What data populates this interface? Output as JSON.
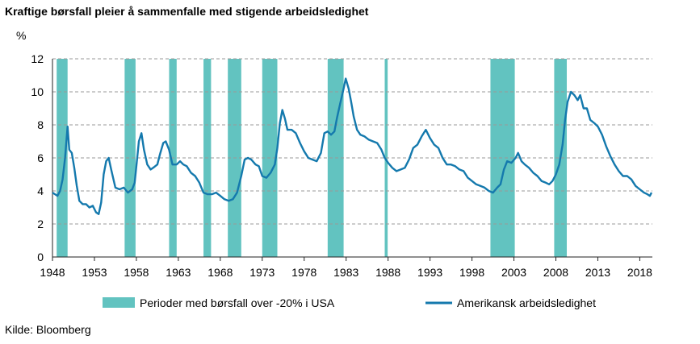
{
  "title": "Kraftige børsfall pleier å sammenfalle med stigende arbeidsledighet",
  "source": "Kilde: Bloomberg",
  "colors": {
    "shade": "#62c3c0",
    "line": "#1479ad",
    "grid": "#999999",
    "axis": "#222222"
  },
  "chart_data": {
    "type": "line",
    "title": "Kraftige børsfall pleier å sammenfalle med stigende arbeidsledighet",
    "xlabel": "",
    "ylabel": "%",
    "xlim": [
      1948,
      2019.5
    ],
    "ylim": [
      0,
      12
    ],
    "x_ticks": [
      "1948",
      "1953",
      "1958",
      "1963",
      "1968",
      "1973",
      "1978",
      "1983",
      "1988",
      "1993",
      "1998",
      "2003",
      "2008",
      "2013",
      "2018"
    ],
    "y_ticks": [
      "0",
      "2",
      "4",
      "6",
      "8",
      "10",
      "12"
    ],
    "grid": "horizontal dashed",
    "legend": [
      {
        "label": "Perioder med børsfall over -20% i USA",
        "kind": "band"
      },
      {
        "label": "Amerikansk arbeidsledighet",
        "kind": "line"
      }
    ],
    "legend_position": "bottom",
    "shaded_periods": [
      [
        1948.5,
        1949.8
      ],
      [
        1956.6,
        1957.9
      ],
      [
        1961.9,
        1962.8
      ],
      [
        1966.0,
        1966.9
      ],
      [
        1968.9,
        1970.5
      ],
      [
        1973.0,
        1974.8
      ],
      [
        1980.8,
        1982.7
      ],
      [
        1987.6,
        1987.95
      ],
      [
        2000.2,
        2003.1
      ],
      [
        2007.8,
        2009.3
      ]
    ],
    "series": [
      {
        "name": "Amerikansk arbeidsledighet",
        "points": [
          [
            1948.0,
            3.9
          ],
          [
            1948.3,
            3.8
          ],
          [
            1948.6,
            3.7
          ],
          [
            1948.9,
            4.0
          ],
          [
            1949.2,
            4.7
          ],
          [
            1949.5,
            6.0
          ],
          [
            1949.8,
            7.9
          ],
          [
            1950.0,
            6.5
          ],
          [
            1950.3,
            6.3
          ],
          [
            1950.6,
            5.4
          ],
          [
            1950.9,
            4.3
          ],
          [
            1951.2,
            3.4
          ],
          [
            1951.6,
            3.2
          ],
          [
            1952.0,
            3.2
          ],
          [
            1952.4,
            3.0
          ],
          [
            1952.8,
            3.1
          ],
          [
            1953.2,
            2.7
          ],
          [
            1953.5,
            2.6
          ],
          [
            1953.8,
            3.3
          ],
          [
            1954.1,
            5.0
          ],
          [
            1954.4,
            5.8
          ],
          [
            1954.7,
            6.0
          ],
          [
            1955.0,
            5.3
          ],
          [
            1955.5,
            4.2
          ],
          [
            1956.0,
            4.1
          ],
          [
            1956.5,
            4.2
          ],
          [
            1957.0,
            3.9
          ],
          [
            1957.5,
            4.1
          ],
          [
            1957.8,
            4.5
          ],
          [
            1958.0,
            5.5
          ],
          [
            1958.3,
            7.0
          ],
          [
            1958.6,
            7.5
          ],
          [
            1958.9,
            6.5
          ],
          [
            1959.3,
            5.6
          ],
          [
            1959.7,
            5.3
          ],
          [
            1960.0,
            5.4
          ],
          [
            1960.5,
            5.6
          ],
          [
            1960.8,
            6.2
          ],
          [
            1961.2,
            6.9
          ],
          [
            1961.5,
            7.0
          ],
          [
            1961.9,
            6.5
          ],
          [
            1962.3,
            5.6
          ],
          [
            1962.8,
            5.6
          ],
          [
            1963.2,
            5.8
          ],
          [
            1963.6,
            5.6
          ],
          [
            1964.0,
            5.5
          ],
          [
            1964.5,
            5.1
          ],
          [
            1965.0,
            4.9
          ],
          [
            1965.5,
            4.5
          ],
          [
            1966.0,
            3.9
          ],
          [
            1966.5,
            3.8
          ],
          [
            1967.0,
            3.8
          ],
          [
            1967.5,
            3.9
          ],
          [
            1968.0,
            3.7
          ],
          [
            1968.5,
            3.5
          ],
          [
            1969.0,
            3.4
          ],
          [
            1969.5,
            3.5
          ],
          [
            1970.0,
            3.9
          ],
          [
            1970.5,
            4.9
          ],
          [
            1970.9,
            5.9
          ],
          [
            1971.3,
            6.0
          ],
          [
            1971.7,
            5.9
          ],
          [
            1972.2,
            5.6
          ],
          [
            1972.6,
            5.5
          ],
          [
            1973.0,
            4.9
          ],
          [
            1973.5,
            4.8
          ],
          [
            1974.0,
            5.1
          ],
          [
            1974.5,
            5.6
          ],
          [
            1974.8,
            6.6
          ],
          [
            1975.1,
            8.1
          ],
          [
            1975.4,
            8.9
          ],
          [
            1975.7,
            8.4
          ],
          [
            1976.0,
            7.7
          ],
          [
            1976.5,
            7.7
          ],
          [
            1977.0,
            7.5
          ],
          [
            1977.5,
            6.9
          ],
          [
            1978.0,
            6.4
          ],
          [
            1978.5,
            6.0
          ],
          [
            1979.0,
            5.9
          ],
          [
            1979.5,
            5.8
          ],
          [
            1980.0,
            6.3
          ],
          [
            1980.4,
            7.5
          ],
          [
            1980.8,
            7.6
          ],
          [
            1981.2,
            7.4
          ],
          [
            1981.6,
            7.6
          ],
          [
            1981.9,
            8.4
          ],
          [
            1982.3,
            9.3
          ],
          [
            1982.7,
            10.2
          ],
          [
            1982.95,
            10.8
          ],
          [
            1983.3,
            10.2
          ],
          [
            1983.6,
            9.4
          ],
          [
            1983.9,
            8.5
          ],
          [
            1984.3,
            7.7
          ],
          [
            1984.7,
            7.4
          ],
          [
            1985.2,
            7.3
          ],
          [
            1985.7,
            7.1
          ],
          [
            1986.2,
            7.0
          ],
          [
            1986.7,
            6.9
          ],
          [
            1987.2,
            6.5
          ],
          [
            1987.6,
            6.0
          ],
          [
            1988.0,
            5.7
          ],
          [
            1988.5,
            5.4
          ],
          [
            1989.0,
            5.2
          ],
          [
            1989.5,
            5.3
          ],
          [
            1990.0,
            5.4
          ],
          [
            1990.5,
            5.9
          ],
          [
            1991.0,
            6.6
          ],
          [
            1991.5,
            6.8
          ],
          [
            1992.0,
            7.3
          ],
          [
            1992.5,
            7.7
          ],
          [
            1993.0,
            7.2
          ],
          [
            1993.5,
            6.8
          ],
          [
            1994.0,
            6.6
          ],
          [
            1994.5,
            6.0
          ],
          [
            1995.0,
            5.6
          ],
          [
            1995.5,
            5.6
          ],
          [
            1996.0,
            5.5
          ],
          [
            1996.5,
            5.3
          ],
          [
            1997.0,
            5.2
          ],
          [
            1997.5,
            4.8
          ],
          [
            1998.0,
            4.6
          ],
          [
            1998.5,
            4.4
          ],
          [
            1999.0,
            4.3
          ],
          [
            1999.5,
            4.2
          ],
          [
            2000.0,
            4.0
          ],
          [
            2000.5,
            3.9
          ],
          [
            2001.0,
            4.2
          ],
          [
            2001.4,
            4.4
          ],
          [
            2001.8,
            5.3
          ],
          [
            2002.2,
            5.8
          ],
          [
            2002.7,
            5.7
          ],
          [
            2003.2,
            6.0
          ],
          [
            2003.5,
            6.3
          ],
          [
            2003.9,
            5.8
          ],
          [
            2004.3,
            5.6
          ],
          [
            2004.8,
            5.4
          ],
          [
            2005.3,
            5.1
          ],
          [
            2005.8,
            4.9
          ],
          [
            2006.3,
            4.6
          ],
          [
            2006.8,
            4.5
          ],
          [
            2007.2,
            4.4
          ],
          [
            2007.6,
            4.6
          ],
          [
            2008.0,
            5.0
          ],
          [
            2008.4,
            5.6
          ],
          [
            2008.8,
            6.8
          ],
          [
            2009.1,
            8.3
          ],
          [
            2009.4,
            9.4
          ],
          [
            2009.8,
            10.0
          ],
          [
            2010.2,
            9.8
          ],
          [
            2010.6,
            9.5
          ],
          [
            2010.9,
            9.8
          ],
          [
            2011.3,
            9.0
          ],
          [
            2011.7,
            9.0
          ],
          [
            2012.1,
            8.3
          ],
          [
            2012.6,
            8.1
          ],
          [
            2013.0,
            7.9
          ],
          [
            2013.5,
            7.4
          ],
          [
            2014.0,
            6.7
          ],
          [
            2014.5,
            6.1
          ],
          [
            2015.0,
            5.6
          ],
          [
            2015.5,
            5.2
          ],
          [
            2016.0,
            4.9
          ],
          [
            2016.5,
            4.9
          ],
          [
            2017.0,
            4.7
          ],
          [
            2017.5,
            4.3
          ],
          [
            2018.0,
            4.1
          ],
          [
            2018.5,
            3.9
          ],
          [
            2018.9,
            3.8
          ],
          [
            2019.2,
            3.7
          ],
          [
            2019.4,
            3.9
          ]
        ]
      }
    ]
  }
}
